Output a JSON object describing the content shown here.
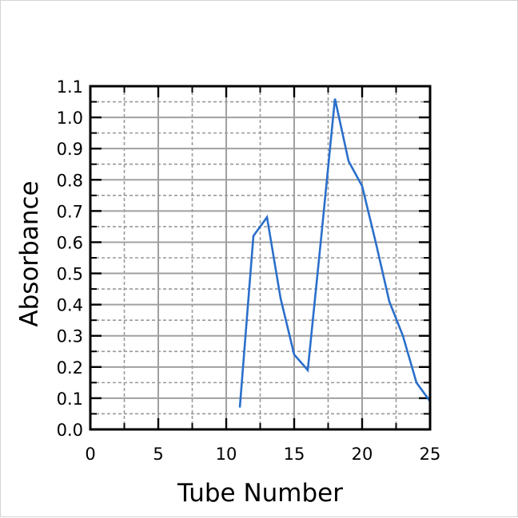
{
  "chart_data": {
    "type": "line",
    "title": "",
    "xlabel": "Tube Number",
    "ylabel": "Absorbance",
    "xlim": [
      0,
      25
    ],
    "ylim": [
      0,
      1.1
    ],
    "x_ticks": [
      0,
      5,
      10,
      15,
      20,
      25
    ],
    "y_ticks": [
      0.0,
      0.1,
      0.2,
      0.3,
      0.4,
      0.5,
      0.6,
      0.7,
      0.8,
      0.9,
      1.0,
      1.1
    ],
    "grid": true,
    "series": [
      {
        "color": "#2a6fcb",
        "x": [
          11,
          12,
          13,
          14,
          15,
          16,
          17,
          18,
          19,
          20,
          21,
          22,
          23,
          24,
          25
        ],
        "y": [
          0.07,
          0.62,
          0.68,
          0.42,
          0.24,
          0.19,
          0.62,
          1.06,
          0.86,
          0.78,
          0.6,
          0.41,
          0.3,
          0.15,
          0.09
        ]
      }
    ]
  }
}
